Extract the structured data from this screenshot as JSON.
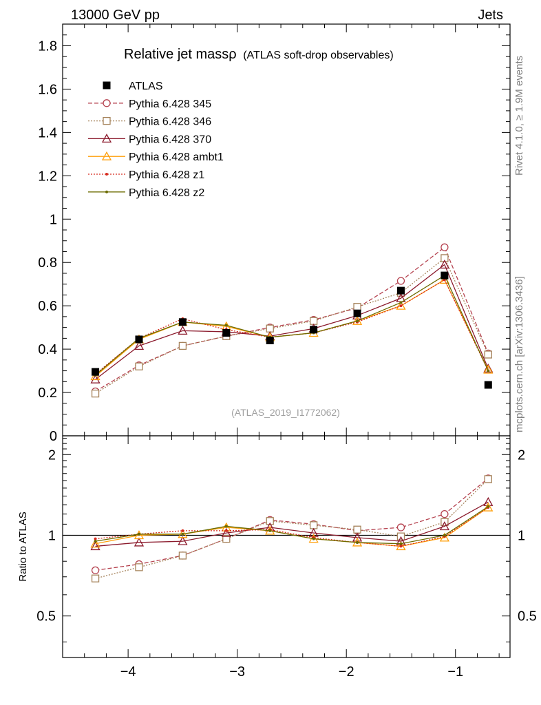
{
  "header": {
    "energy": "13000 GeV pp",
    "process": "Jets"
  },
  "side": {
    "rivet": "Rivet 4.1.0, ≥ 1.9M events",
    "site": "mcplots.cern.ch [arXiv:1306.3436]"
  },
  "chart_data": [
    {
      "type": "line",
      "panel": "main",
      "title": "Relative jet massρ",
      "subtitle": "(ATLAS soft-drop observables)",
      "watermark": "(ATLAS_2019_I1772062)",
      "xlabel": "",
      "ylabel": "",
      "xlim": [
        -4.6,
        -0.5
      ],
      "ylim": [
        0,
        1.9
      ],
      "yticks": [
        0,
        0.2,
        0.4,
        0.6,
        0.8,
        1,
        1.2,
        1.4,
        1.6,
        1.8
      ],
      "ytick_labels": [
        "0",
        "0.2",
        "0.4",
        "0.6",
        "0.8",
        "1",
        "1.2",
        "1.4",
        "1.6",
        "1.8"
      ],
      "x": [
        -4.3,
        -3.9,
        -3.5,
        -3.1,
        -2.7,
        -2.3,
        -1.9,
        -1.5,
        -1.1,
        -0.7
      ],
      "series": [
        {
          "name": "ATLAS",
          "color": "#000000",
          "marker": "filled-square",
          "line": "none",
          "values": [
            0.295,
            0.445,
            0.525,
            0.475,
            0.44,
            0.49,
            0.565,
            0.67,
            0.74,
            0.235
          ]
        },
        {
          "name": "Pythia 6.428 345",
          "color": "#b5424f",
          "marker": "open-circle",
          "line": "dashed",
          "values": [
            0.205,
            0.325,
            0.415,
            0.46,
            0.5,
            0.535,
            0.59,
            0.715,
            0.87,
            0.38
          ]
        },
        {
          "name": "Pythia 6.428 346",
          "color": "#a5825a",
          "marker": "open-square",
          "line": "dotted",
          "values": [
            0.195,
            0.32,
            0.415,
            0.46,
            0.495,
            0.53,
            0.595,
            0.66,
            0.82,
            0.375
          ]
        },
        {
          "name": "Pythia 6.428 370",
          "color": "#8b1a2c",
          "marker": "open-triangle",
          "line": "solid",
          "values": [
            0.26,
            0.415,
            0.485,
            0.48,
            0.46,
            0.495,
            0.555,
            0.635,
            0.79,
            0.31
          ]
        },
        {
          "name": "Pythia 6.428 ambt1",
          "color": "#ff9f0a",
          "marker": "open-triangle",
          "line": "solid",
          "values": [
            0.275,
            0.445,
            0.525,
            0.505,
            0.455,
            0.475,
            0.53,
            0.6,
            0.72,
            0.305
          ]
        },
        {
          "name": "Pythia 6.428 z1",
          "color": "#d62b1e",
          "marker": "star",
          "line": "dotted",
          "values": [
            0.285,
            0.45,
            0.54,
            0.49,
            0.455,
            0.475,
            0.525,
            0.6,
            0.72,
            0.3
          ]
        },
        {
          "name": "Pythia 6.428 z2",
          "color": "#6b6b00",
          "marker": "star",
          "line": "solid",
          "values": [
            0.28,
            0.45,
            0.525,
            0.51,
            0.455,
            0.475,
            0.53,
            0.615,
            0.74,
            0.3
          ]
        }
      ]
    },
    {
      "type": "line",
      "panel": "ratio",
      "ylabel": "Ratio to ATLAS",
      "xlim": [
        -4.6,
        -0.5
      ],
      "ylim": [
        0.35,
        2.35
      ],
      "yticks": [
        0.5,
        1,
        2
      ],
      "ytick_labels": [
        "0.5",
        "1",
        "2"
      ],
      "xticks": [
        -4,
        -3,
        -2,
        -1
      ],
      "xtick_labels": [
        "−4",
        "−3",
        "−2",
        "−1"
      ],
      "reference": 1,
      "x": [
        -4.3,
        -3.9,
        -3.5,
        -3.1,
        -2.7,
        -2.3,
        -1.9,
        -1.5,
        -1.1,
        -0.7
      ],
      "series": [
        {
          "name": "Pythia 6.428 345",
          "values": [
            0.74,
            0.78,
            0.84,
            0.97,
            1.14,
            1.1,
            1.04,
            1.07,
            1.2,
            1.63
          ]
        },
        {
          "name": "Pythia 6.428 346",
          "values": [
            0.69,
            0.76,
            0.84,
            0.97,
            1.13,
            1.09,
            1.05,
            0.99,
            1.12,
            1.62
          ]
        },
        {
          "name": "Pythia 6.428 370",
          "values": [
            0.91,
            0.94,
            0.95,
            1.02,
            1.07,
            1.02,
            0.98,
            0.95,
            1.08,
            1.33
          ]
        },
        {
          "name": "Pythia 6.428 ambt1",
          "values": [
            0.93,
            1.0,
            1.01,
            1.07,
            1.04,
            0.97,
            0.94,
            0.91,
            0.98,
            1.27
          ]
        },
        {
          "name": "Pythia 6.428 z1",
          "values": [
            0.97,
            1.01,
            1.04,
            1.04,
            1.05,
            0.98,
            0.94,
            0.91,
            0.99,
            1.27
          ]
        },
        {
          "name": "Pythia 6.428 z2",
          "values": [
            0.95,
            1.01,
            1.01,
            1.08,
            1.04,
            0.97,
            0.94,
            0.93,
            1.0,
            1.28
          ]
        }
      ]
    }
  ]
}
